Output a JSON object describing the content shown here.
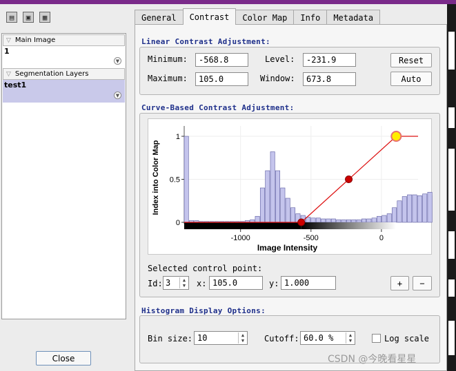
{
  "toolbar": {
    "icons": [
      "open-icon",
      "save-icon",
      "grid-icon"
    ]
  },
  "left_panel": {
    "main_image": {
      "header": "Main Image",
      "value": "1"
    },
    "segmentation": {
      "header": "Segmentation Layers",
      "value": "test1"
    },
    "close_label": "Close"
  },
  "tabs": [
    {
      "label": "General"
    },
    {
      "label": "Contrast"
    },
    {
      "label": "Color Map"
    },
    {
      "label": "Info"
    },
    {
      "label": "Metadata"
    }
  ],
  "linear": {
    "title": "Linear Contrast Adjustment:",
    "minimum_label": "Minimum:",
    "minimum_value": "-568.8",
    "level_label": "Level:",
    "level_value": "-231.9",
    "maximum_label": "Maximum:",
    "maximum_value": "105.0",
    "window_label": "Window:",
    "window_value": "673.8",
    "reset_label": "Reset",
    "auto_label": "Auto"
  },
  "curve": {
    "title": "Curve-Based Contrast Adjustment:",
    "selected_label": "Selected control point:",
    "id_label": "Id:",
    "id_value": "3",
    "x_label": "x:",
    "x_value": "105.0",
    "y_label": "y:",
    "y_value": "1.000",
    "plus_label": "+",
    "minus_label": "−"
  },
  "chart_data": {
    "type": "bar",
    "xlabel": "Image Intensity",
    "ylabel": "Index into Color Map",
    "xlim": [
      -1400,
      260
    ],
    "ylim": [
      0,
      1.12
    ],
    "x_ticks": [
      {
        "value": -1000,
        "label": "-1000"
      },
      {
        "value": -500,
        "label": "-500"
      },
      {
        "value": 0,
        "label": "0"
      }
    ],
    "y_ticks": [
      {
        "value": 0,
        "label": "0"
      },
      {
        "value": 0.5,
        "label": "0.5"
      },
      {
        "value": 1,
        "label": "1"
      }
    ],
    "histogram": {
      "bin_start": -1400,
      "bin_width": 36,
      "values": [
        1.0,
        0.02,
        0.02,
        0.01,
        0.01,
        0.01,
        0.01,
        0.01,
        0.01,
        0.01,
        0.01,
        0.01,
        0.02,
        0.03,
        0.07,
        0.4,
        0.6,
        0.82,
        0.6,
        0.4,
        0.28,
        0.17,
        0.1,
        0.08,
        0.06,
        0.05,
        0.05,
        0.04,
        0.04,
        0.04,
        0.03,
        0.03,
        0.03,
        0.03,
        0.03,
        0.04,
        0.04,
        0.05,
        0.07,
        0.08,
        0.1,
        0.17,
        0.25,
        0.3,
        0.32,
        0.32,
        0.31,
        0.33,
        0.35,
        0.31,
        0.27,
        0.26,
        0.22,
        0.32
      ]
    },
    "curve_points": [
      {
        "x": -1400,
        "y": 0
      },
      {
        "x": -568.8,
        "y": 0
      },
      {
        "x": -231.9,
        "y": 0.5
      },
      {
        "x": 105.0,
        "y": 1.0
      },
      {
        "x": 260,
        "y": 1.0
      }
    ],
    "control_points": [
      {
        "x": -568.8,
        "y": 0,
        "color": "#cc0000"
      },
      {
        "x": -231.9,
        "y": 0.5,
        "color": "#cc0000"
      },
      {
        "x": 105.0,
        "y": 1.0,
        "color": "#ffee00"
      }
    ],
    "bar_color": "#c4c4ec",
    "curve_color": "#dd1111"
  },
  "histogram_options": {
    "title": "Histogram Display Options:",
    "bin_size_label": "Bin size:",
    "bin_size_value": "10",
    "cutoff_label": "Cutoff:",
    "cutoff_value": "60.0 %",
    "log_scale_label": "Log scale"
  },
  "watermark": "CSDN @今晚看星星"
}
